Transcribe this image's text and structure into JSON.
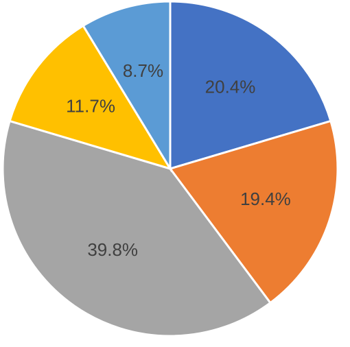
{
  "chart_data": {
    "type": "pie",
    "values": [
      20.4,
      19.4,
      39.8,
      11.7,
      8.7
    ],
    "value_labels": [
      "20.4%",
      "19.4%",
      "39.8%",
      "11.7%",
      "8.7%"
    ],
    "colors": [
      "#4472c4",
      "#ed7d31",
      "#a5a5a5",
      "#ffc000",
      "#5b9bd5"
    ]
  }
}
